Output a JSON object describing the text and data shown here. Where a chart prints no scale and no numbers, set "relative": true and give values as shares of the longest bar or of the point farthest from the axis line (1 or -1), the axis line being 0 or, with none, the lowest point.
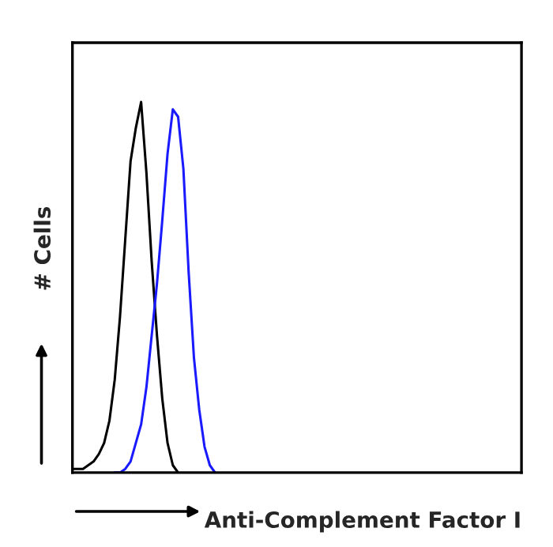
{
  "chart_data": {
    "type": "line",
    "relative": true,
    "xlabel": "Anti-Complement Factor I",
    "ylabel": "# Cells",
    "categories": [
      null,
      null,
      null,
      null,
      null,
      null,
      null,
      null,
      null,
      null,
      null,
      null,
      null,
      null,
      null,
      null,
      null,
      null,
      null,
      null,
      null,
      null,
      null,
      null,
      null,
      null,
      null,
      null,
      null,
      null,
      null,
      null,
      null,
      null,
      null,
      null,
      null,
      null,
      null,
      null,
      null,
      null,
      null,
      null,
      null,
      null,
      null,
      null,
      null,
      null,
      null,
      null,
      null,
      null,
      null,
      null,
      null,
      null,
      null,
      null,
      null,
      null,
      null,
      null,
      null,
      null,
      null,
      null,
      null,
      null,
      null,
      null,
      null,
      null,
      null,
      null,
      null,
      null,
      null,
      null,
      null,
      null,
      null,
      null,
      null,
      null
    ],
    "series": [
      {
        "color": "#000000",
        "values": [
          0.01,
          0.01,
          0.01,
          0.02,
          0.03,
          0.05,
          0.08,
          0.14,
          0.25,
          0.42,
          0.63,
          0.84,
          0.93,
          1,
          0.81,
          0.57,
          0.37,
          0.2,
          0.08,
          0.02,
          0,
          null,
          null,
          null,
          null,
          null,
          null,
          null,
          null,
          null,
          null,
          null,
          null,
          null,
          null,
          null,
          null,
          null,
          null,
          null,
          null,
          null,
          null,
          null,
          null,
          null,
          null,
          null,
          null,
          null,
          null,
          null,
          null,
          null,
          null,
          null,
          null,
          null,
          null,
          null,
          null,
          null,
          null,
          null,
          null,
          null,
          null,
          null,
          null,
          null,
          null,
          null,
          null,
          null,
          null,
          null,
          null,
          null,
          null,
          null,
          null,
          null,
          null,
          null,
          null,
          null
        ]
      },
      {
        "color": "#1a1aff",
        "values": [
          null,
          null,
          null,
          null,
          null,
          null,
          null,
          null,
          0,
          0,
          0.01,
          0.03,
          0.08,
          0.13,
          0.23,
          0.37,
          0.51,
          0.68,
          0.86,
          0.98,
          0.96,
          0.82,
          0.54,
          0.31,
          0.17,
          0.07,
          0.02,
          0,
          null,
          null,
          null,
          null,
          null,
          null,
          null,
          null,
          null,
          null,
          null,
          null,
          null,
          null,
          null,
          null,
          null,
          null,
          null,
          null,
          null,
          null,
          null,
          null,
          null,
          null,
          null,
          null,
          null,
          null,
          null,
          null,
          null,
          null,
          null,
          null,
          null,
          null,
          null,
          null,
          null,
          null,
          null,
          null,
          null,
          null,
          null,
          null,
          null,
          null,
          null,
          null,
          null,
          null,
          null,
          null,
          null,
          null
        ]
      }
    ],
    "grid": false,
    "legend": false,
    "line_style": "solid",
    "marker": "none"
  }
}
